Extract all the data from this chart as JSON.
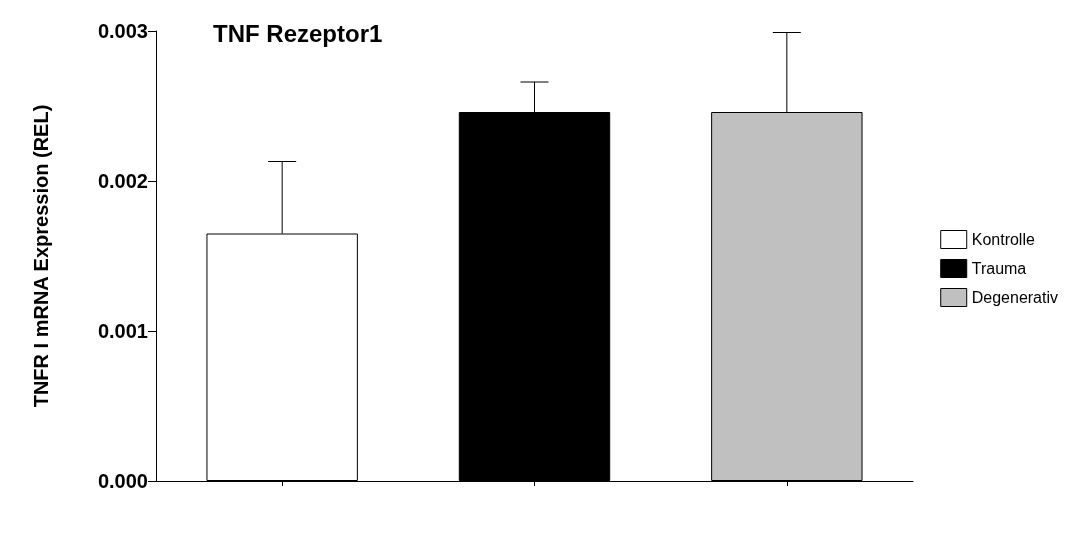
{
  "chart_data": {
    "type": "bar",
    "title": "TNF Rezeptor1",
    "ylabel": "TNFR I mRNA Expression (REL)",
    "categories": [
      null,
      null,
      null
    ],
    "stacked": true,
    "series": [
      {
        "name": "Kontrolle",
        "color": "#ffffff",
        "values": [
          0.00165,
          null,
          null
        ],
        "errors": [
          [
            0.00165,
            0.00213
          ],
          null,
          null
        ]
      },
      {
        "name": "Trauma",
        "color": "#000000",
        "values": [
          null,
          0.00246,
          null
        ],
        "errors": [
          null,
          [
            0.00246,
            0.00266
          ],
          null
        ]
      },
      {
        "name": "Degenerativ",
        "color": "#c0c0c0",
        "values": [
          null,
          null,
          0.00246
        ],
        "errors": [
          null,
          null,
          [
            0.00246,
            0.00299
          ]
        ]
      }
    ],
    "ylim": [
      0,
      0.003
    ],
    "yticks": [
      {
        "value": 0,
        "label": "0.000"
      },
      {
        "value": 0.001,
        "label": "0.001"
      },
      {
        "value": 0.002,
        "label": "0.002"
      },
      {
        "value": 0.003,
        "label": "0.003"
      }
    ],
    "grid": false,
    "legend": "right"
  }
}
